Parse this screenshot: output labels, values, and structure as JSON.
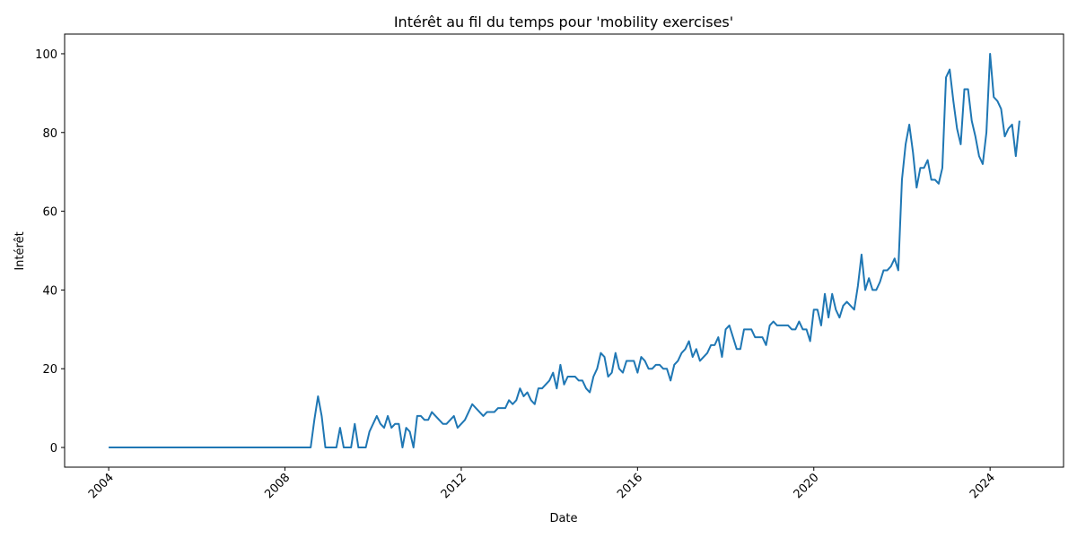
{
  "chart_data": {
    "type": "line",
    "title": "Intérêt au fil du temps pour 'mobility exercises'",
    "xlabel": "Date",
    "ylabel": "Intérêt",
    "color": "#1f77b4",
    "x": [
      "2004-01",
      "2004-02",
      "2004-03",
      "2004-04",
      "2004-05",
      "2004-06",
      "2004-07",
      "2004-08",
      "2004-09",
      "2004-10",
      "2004-11",
      "2004-12",
      "2005-01",
      "2005-02",
      "2005-03",
      "2005-04",
      "2005-05",
      "2005-06",
      "2005-07",
      "2005-08",
      "2005-09",
      "2005-10",
      "2005-11",
      "2005-12",
      "2006-01",
      "2006-02",
      "2006-03",
      "2006-04",
      "2006-05",
      "2006-06",
      "2006-07",
      "2006-08",
      "2006-09",
      "2006-10",
      "2006-11",
      "2006-12",
      "2007-01",
      "2007-02",
      "2007-03",
      "2007-04",
      "2007-05",
      "2007-06",
      "2007-07",
      "2007-08",
      "2007-09",
      "2007-10",
      "2007-11",
      "2007-12",
      "2008-01",
      "2008-02",
      "2008-03",
      "2008-04",
      "2008-05",
      "2008-06",
      "2008-07",
      "2008-08",
      "2008-09",
      "2008-10",
      "2008-11",
      "2008-12",
      "2009-01",
      "2009-02",
      "2009-03",
      "2009-04",
      "2009-05",
      "2009-06",
      "2009-07",
      "2009-08",
      "2009-09",
      "2009-10",
      "2009-11",
      "2009-12",
      "2010-01",
      "2010-02",
      "2010-03",
      "2010-04",
      "2010-05",
      "2010-06",
      "2010-07",
      "2010-08",
      "2010-09",
      "2010-10",
      "2010-11",
      "2010-12",
      "2011-01",
      "2011-02",
      "2011-03",
      "2011-04",
      "2011-05",
      "2011-06",
      "2011-07",
      "2011-08",
      "2011-09",
      "2011-10",
      "2011-11",
      "2011-12",
      "2012-01",
      "2012-02",
      "2012-03",
      "2012-04",
      "2012-05",
      "2012-06",
      "2012-07",
      "2012-08",
      "2012-09",
      "2012-10",
      "2012-11",
      "2012-12",
      "2013-01",
      "2013-02",
      "2013-03",
      "2013-04",
      "2013-05",
      "2013-06",
      "2013-07",
      "2013-08",
      "2013-09",
      "2013-10",
      "2013-11",
      "2013-12",
      "2014-01",
      "2014-02",
      "2014-03",
      "2014-04",
      "2014-05",
      "2014-06",
      "2014-07",
      "2014-08",
      "2014-09",
      "2014-10",
      "2014-11",
      "2014-12",
      "2015-01",
      "2015-02",
      "2015-03",
      "2015-04",
      "2015-05",
      "2015-06",
      "2015-07",
      "2015-08",
      "2015-09",
      "2015-10",
      "2015-11",
      "2015-12",
      "2016-01",
      "2016-02",
      "2016-03",
      "2016-04",
      "2016-05",
      "2016-06",
      "2016-07",
      "2016-08",
      "2016-09",
      "2016-10",
      "2016-11",
      "2016-12",
      "2017-01",
      "2017-02",
      "2017-03",
      "2017-04",
      "2017-05",
      "2017-06",
      "2017-07",
      "2017-08",
      "2017-09",
      "2017-10",
      "2017-11",
      "2017-12",
      "2018-01",
      "2018-02",
      "2018-03",
      "2018-04",
      "2018-05",
      "2018-06",
      "2018-07",
      "2018-08",
      "2018-09",
      "2018-10",
      "2018-11",
      "2018-12",
      "2019-01",
      "2019-02",
      "2019-03",
      "2019-04",
      "2019-05",
      "2019-06",
      "2019-07",
      "2019-08",
      "2019-09",
      "2019-10",
      "2019-11",
      "2019-12",
      "2020-01",
      "2020-02",
      "2020-03",
      "2020-04",
      "2020-05",
      "2020-06",
      "2020-07",
      "2020-08",
      "2020-09",
      "2020-10",
      "2020-11",
      "2020-12",
      "2021-01",
      "2021-02",
      "2021-03",
      "2021-04",
      "2021-05",
      "2021-06",
      "2021-07",
      "2021-08",
      "2021-09",
      "2021-10",
      "2021-11",
      "2021-12",
      "2022-01",
      "2022-02",
      "2022-03",
      "2022-04",
      "2022-05",
      "2022-06",
      "2022-07",
      "2022-08",
      "2022-09",
      "2022-10",
      "2022-11",
      "2022-12",
      "2023-01",
      "2023-02",
      "2023-03",
      "2023-04",
      "2023-05",
      "2023-06",
      "2023-07",
      "2023-08",
      "2023-09",
      "2023-10",
      "2023-11",
      "2023-12",
      "2024-01",
      "2024-02",
      "2024-03",
      "2024-04",
      "2024-05",
      "2024-06",
      "2024-07",
      "2024-08",
      "2024-09"
    ],
    "values": [
      0,
      0,
      0,
      0,
      0,
      0,
      0,
      0,
      0,
      0,
      0,
      0,
      0,
      0,
      0,
      0,
      0,
      0,
      0,
      0,
      0,
      0,
      0,
      0,
      0,
      0,
      0,
      0,
      0,
      0,
      0,
      0,
      0,
      0,
      0,
      0,
      0,
      0,
      0,
      0,
      0,
      0,
      0,
      0,
      0,
      0,
      0,
      0,
      0,
      0,
      0,
      0,
      0,
      0,
      0,
      0,
      7,
      13,
      8,
      0,
      0,
      0,
      0,
      5,
      0,
      0,
      0,
      6,
      0,
      0,
      0,
      4,
      6,
      8,
      6,
      5,
      8,
      5,
      6,
      6,
      0,
      5,
      4,
      0,
      8,
      8,
      7,
      7,
      9,
      8,
      7,
      6,
      6,
      7,
      8,
      5,
      6,
      7,
      9,
      11,
      10,
      9,
      8,
      9,
      9,
      9,
      10,
      10,
      10,
      12,
      11,
      12,
      15,
      13,
      14,
      12,
      11,
      15,
      15,
      16,
      17,
      19,
      15,
      21,
      16,
      18,
      18,
      18,
      17,
      17,
      15,
      14,
      18,
      20,
      24,
      23,
      18,
      19,
      24,
      20,
      19,
      22,
      22,
      22,
      19,
      23,
      22,
      20,
      20,
      21,
      21,
      20,
      20,
      17,
      21,
      22,
      24,
      25,
      27,
      23,
      25,
      22,
      23,
      24,
      26,
      26,
      28,
      23,
      30,
      31,
      28,
      25,
      25,
      30,
      30,
      30,
      28,
      28,
      28,
      26,
      31,
      32,
      31,
      31,
      31,
      31,
      30,
      30,
      32,
      30,
      30,
      27,
      35,
      35,
      31,
      39,
      33,
      39,
      35,
      33,
      36,
      37,
      36,
      35,
      41,
      49,
      40,
      43,
      40,
      40,
      42,
      45,
      45,
      46,
      48,
      45,
      68,
      77,
      82,
      75,
      66,
      71,
      71,
      73,
      68,
      68,
      67,
      71,
      94,
      96,
      88,
      81,
      77,
      91,
      91,
      83,
      79,
      74,
      72,
      80,
      100,
      89,
      88,
      86,
      79,
      81,
      82,
      74,
      83
    ],
    "xlim": [
      "2003-01",
      "2025-09"
    ],
    "xticks": [
      "2004",
      "2008",
      "2012",
      "2016",
      "2020",
      "2024"
    ],
    "ylim": [
      -5,
      105
    ],
    "yticks": [
      0,
      20,
      40,
      60,
      80,
      100
    ]
  }
}
